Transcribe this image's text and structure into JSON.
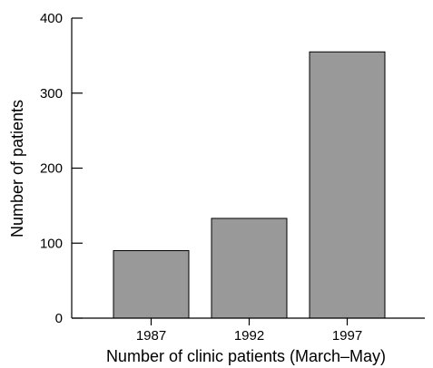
{
  "chart_data": {
    "type": "bar",
    "title": "",
    "xlabel": "Number of clinic patients (March–May)",
    "ylabel": "Number of patients",
    "categories": [
      "1987",
      "1992",
      "1997"
    ],
    "values": [
      90,
      133,
      355
    ],
    "ylim": [
      0,
      400
    ],
    "yticks": [
      0,
      100,
      200,
      300,
      400
    ],
    "grid": false,
    "legend": "none",
    "colors": {
      "bar_fill": "#999999",
      "bar_stroke": "#000000",
      "axis": "#000000"
    }
  }
}
